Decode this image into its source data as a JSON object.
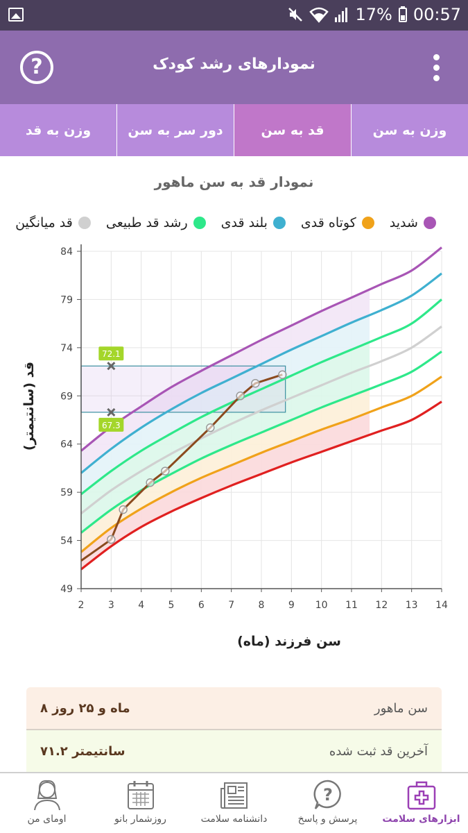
{
  "status": {
    "battery_text": "17%",
    "time": "00:57"
  },
  "appbar": {
    "title": "نمودارهای رشد کودک"
  },
  "tabs": [
    {
      "label": "وزن به قد"
    },
    {
      "label": "دور سر به سن"
    },
    {
      "label": "قد به سن"
    },
    {
      "label": "وزن به سن"
    }
  ],
  "chart_title": "نمودار قد به سن ماهور",
  "legend": [
    {
      "label": "شدید",
      "color": "#a855b5"
    },
    {
      "label": "کوتاه قدی",
      "color": "#f0a21a"
    },
    {
      "label": "بلند قدی",
      "color": "#3fb0d0"
    },
    {
      "label": "رشد قد طبیعی",
      "color": "#2ee88a"
    },
    {
      "label": "قد میانگین",
      "color": "#d0d0d0"
    }
  ],
  "chart_data": {
    "type": "line",
    "xlabel": "سن فرزند (ماه)",
    "ylabel": "قد (سانتیمتر)",
    "x_ticks": [
      2,
      3,
      4,
      5,
      6,
      7,
      8,
      9,
      10,
      11,
      12,
      13,
      14
    ],
    "y_ticks": [
      49,
      54,
      59,
      64,
      69,
      74,
      79,
      84
    ],
    "xlim": [
      2,
      14
    ],
    "ylim": [
      49,
      84
    ],
    "reference_x": [
      2,
      3,
      4,
      5,
      6,
      7,
      8,
      9,
      10,
      11,
      12,
      13,
      14
    ],
    "reference_series": [
      {
        "name": "purple",
        "color": "#a855b5",
        "values": [
          63.3,
          65.8,
          67.9,
          69.9,
          71.6,
          73.2,
          74.8,
          76.3,
          77.8,
          79.2,
          80.6,
          82.0,
          84.4
        ]
      },
      {
        "name": "blue",
        "color": "#3fb0d0",
        "values": [
          61.0,
          63.5,
          65.7,
          67.6,
          69.3,
          70.8,
          72.3,
          73.8,
          75.2,
          76.6,
          77.9,
          79.4,
          81.7
        ]
      },
      {
        "name": "green-high",
        "color": "#2ee88a",
        "values": [
          58.8,
          61.2,
          63.3,
          65.1,
          66.8,
          68.3,
          69.7,
          71.1,
          72.5,
          73.8,
          75.1,
          76.5,
          79.0
        ]
      },
      {
        "name": "average",
        "color": "#d0d0d0",
        "values": [
          56.8,
          59.2,
          61.2,
          63.0,
          64.6,
          66.1,
          67.5,
          68.8,
          70.1,
          71.4,
          72.6,
          74.0,
          76.2
        ]
      },
      {
        "name": "green-low",
        "color": "#2ee88a",
        "values": [
          54.8,
          57.2,
          59.2,
          60.9,
          62.5,
          63.9,
          65.2,
          66.5,
          67.8,
          69.0,
          70.2,
          71.5,
          73.6
        ]
      },
      {
        "name": "orange",
        "color": "#f0a21a",
        "values": [
          52.8,
          55.3,
          57.3,
          59.0,
          60.5,
          61.8,
          63.1,
          64.3,
          65.5,
          66.6,
          67.8,
          69.0,
          71.0
        ]
      },
      {
        "name": "red",
        "color": "#e02020",
        "values": [
          51.0,
          53.4,
          55.4,
          57.0,
          58.4,
          59.7,
          60.9,
          62.1,
          63.2,
          64.3,
          65.4,
          66.5,
          68.4
        ]
      }
    ],
    "shade_until_x": 11.6,
    "measurements": {
      "x": [
        3.0,
        3.4,
        4.3,
        4.8,
        6.3,
        7.3,
        7.8,
        8.7
      ],
      "y": [
        54.1,
        57.2,
        60.0,
        61.2,
        65.7,
        69.0,
        70.3,
        71.2
      ],
      "color": "#8b4a1e"
    },
    "range_box": {
      "x": [
        2,
        8.8
      ],
      "y": [
        67.3,
        72.1
      ]
    },
    "markers": [
      {
        "x": 3,
        "y": 72.1,
        "label": "72.1"
      },
      {
        "x": 3,
        "y": 67.3,
        "label": "67.3"
      }
    ]
  },
  "cards": [
    {
      "label": "سن ماهور",
      "value": "۸ ماه و ۲۵ روز"
    },
    {
      "label": "آخرین قد ثبت شده",
      "value": "۷۱.۲ سانتیمتر"
    }
  ],
  "bottomnav": [
    {
      "label": "اومای من",
      "icon": "profile-icon"
    },
    {
      "label": "روزشمار بانو",
      "icon": "calendar-icon"
    },
    {
      "label": "دانشنامه سلامت",
      "icon": "newspaper-icon"
    },
    {
      "label": "پرسش و پاسخ",
      "icon": "question-bubble-icon"
    },
    {
      "label": "ابزارهای سلامت",
      "icon": "medical-kit-icon",
      "active": true
    }
  ]
}
